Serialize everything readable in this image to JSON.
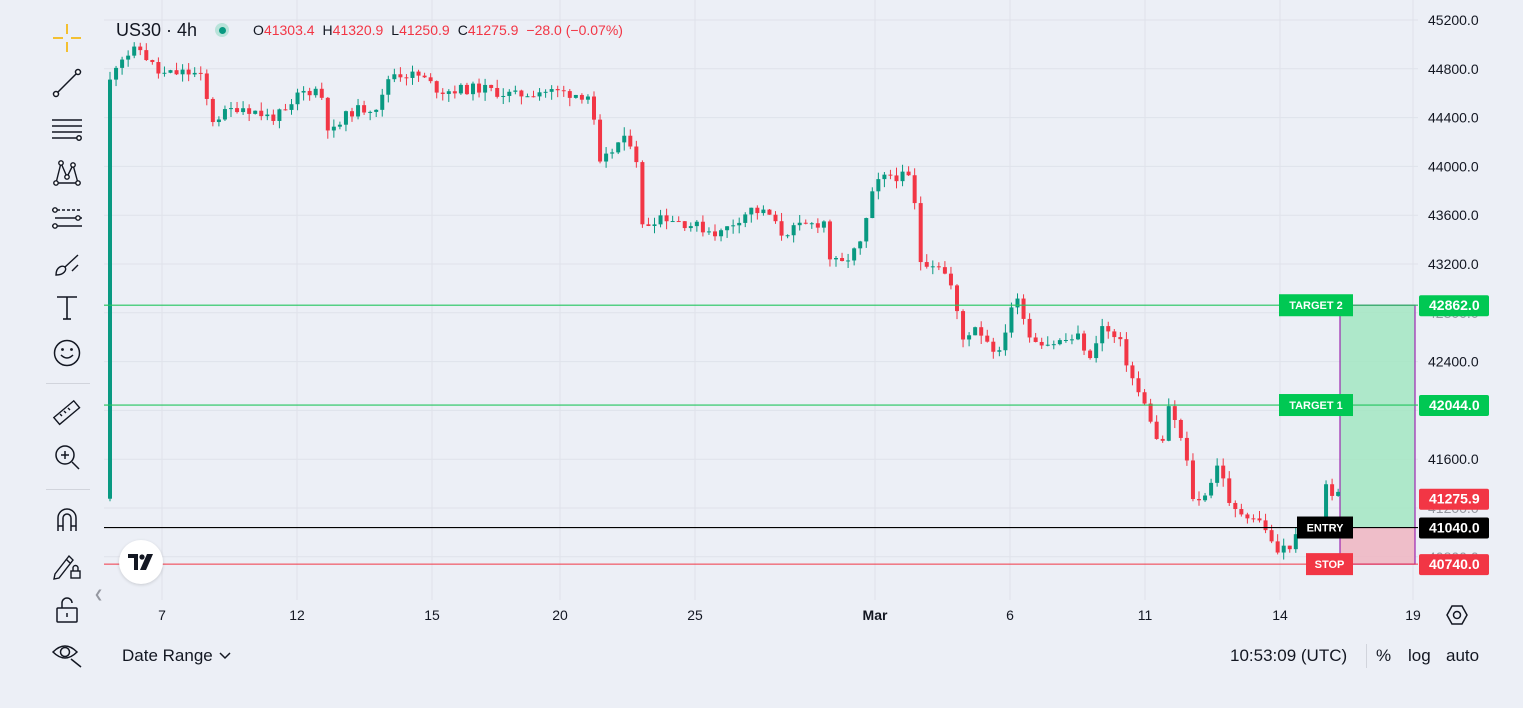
{
  "toolbar": {
    "tools": [
      "crosshair",
      "trend-line",
      "horizontal-lines",
      "patterns",
      "fib-levels",
      "brush",
      "text",
      "emoji",
      "ruler",
      "zoom-in",
      "magnet",
      "lock-drawings",
      "hide-drawings"
    ]
  },
  "legend": {
    "symbol": "US30 · 4h",
    "open_label": "O",
    "open": "41303.4",
    "high_label": "H",
    "high": "41320.9",
    "low_label": "L",
    "low": "41250.9",
    "close_label": "C",
    "close": "41275.9",
    "change": "−28.0 (−0.07%)",
    "status": "market-open-dot"
  },
  "colors": {
    "up": "#089981",
    "down": "#f23645",
    "target_line": "#22c55e",
    "target_label": "#00c853",
    "stop_label": "#f23645",
    "entry_label": "#000000",
    "profit_zone": "#a3e6c2",
    "loss_zone": "#f0b8c4",
    "frame": "#9c27b0",
    "background": "#eceff6",
    "grid": "#dfe2ea"
  },
  "price_axis": {
    "ticks": [
      "45200.0",
      "44800.0",
      "44400.0",
      "44000.0",
      "43600.0",
      "43200.0",
      "42400.0",
      "41600.0"
    ],
    "faded_ticks": [
      "42800.0",
      "41200.0",
      "40800.0"
    ]
  },
  "time_axis": {
    "labels": [
      "7",
      "12",
      "15",
      "20",
      "25",
      "Mar",
      "6",
      "11",
      "14",
      "19"
    ]
  },
  "levels": {
    "target2": {
      "label": "TARGET 2",
      "price": "42862.0"
    },
    "target1": {
      "label": "TARGET 1",
      "price": "42044.0"
    },
    "entry": {
      "label": "ENTRY",
      "price": "41040.0"
    },
    "stop": {
      "label": "STOP",
      "price": "40740.0"
    },
    "last_price": "41275.9"
  },
  "bottom_bar": {
    "date_range": "Date Range",
    "clock": "10:53:09 (UTC)",
    "percent": "%",
    "log": "log",
    "auto": "auto"
  },
  "logo": "TradingView"
}
